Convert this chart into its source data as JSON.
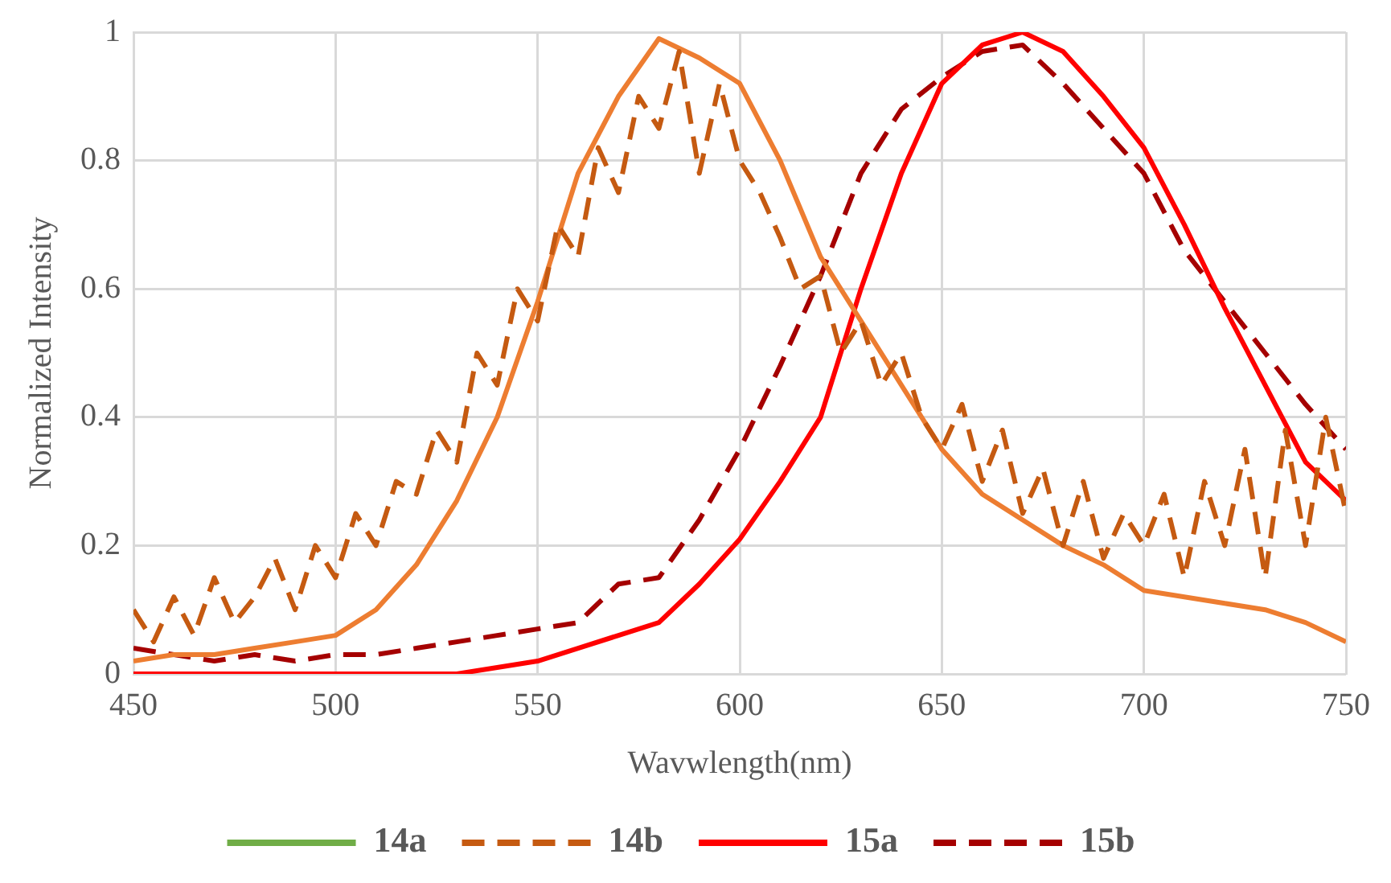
{
  "chart_data": {
    "type": "line",
    "xlabel": "Wavwlength(nm)",
    "ylabel": "Normalized Intensity",
    "xlim": [
      450,
      750
    ],
    "xticks": [
      450,
      500,
      550,
      600,
      650,
      700,
      750
    ],
    "ylim": [
      0,
      1
    ],
    "yticks": [
      0,
      0.2,
      0.4,
      0.6,
      0.8,
      1
    ],
    "grid": true,
    "legend": "bottom",
    "marker": "none",
    "x": [
      450,
      460,
      470,
      480,
      490,
      500,
      510,
      520,
      530,
      540,
      550,
      560,
      570,
      580,
      590,
      600,
      610,
      620,
      630,
      640,
      650,
      660,
      670,
      680,
      690,
      700,
      710,
      720,
      730,
      740,
      750
    ],
    "series": [
      {
        "name": "14a",
        "color": "#70ad47",
        "line_style": "solid",
        "values": [
          null,
          null,
          null,
          null,
          null,
          null,
          null,
          null,
          null,
          null,
          null,
          null,
          null,
          null,
          null,
          null,
          null,
          null,
          null,
          null,
          null,
          null,
          null,
          null,
          null,
          null,
          null,
          null,
          null,
          null,
          null
        ]
      },
      {
        "name": "14b",
        "color": "#c55a11",
        "line_style": "dashed",
        "x": [
          450,
          455,
          460,
          465,
          470,
          475,
          480,
          485,
          490,
          495,
          500,
          505,
          510,
          515,
          520,
          525,
          530,
          535,
          540,
          545,
          550,
          555,
          560,
          565,
          570,
          575,
          580,
          585,
          590,
          595,
          600,
          605,
          610,
          615,
          620,
          625,
          630,
          635,
          640,
          645,
          650,
          655,
          660,
          665,
          670,
          675,
          680,
          685,
          690,
          695,
          700,
          705,
          710,
          715,
          720,
          725,
          730,
          735,
          740,
          745,
          750
        ],
        "values": [
          0.1,
          0.05,
          0.12,
          0.06,
          0.15,
          0.08,
          0.12,
          0.18,
          0.1,
          0.2,
          0.15,
          0.25,
          0.2,
          0.3,
          0.28,
          0.38,
          0.33,
          0.5,
          0.45,
          0.6,
          0.55,
          0.7,
          0.65,
          0.82,
          0.75,
          0.9,
          0.85,
          0.97,
          0.78,
          0.92,
          0.8,
          0.75,
          0.68,
          0.6,
          0.62,
          0.5,
          0.55,
          0.45,
          0.5,
          0.4,
          0.35,
          0.42,
          0.3,
          0.38,
          0.25,
          0.32,
          0.2,
          0.3,
          0.18,
          0.25,
          0.2,
          0.28,
          0.15,
          0.3,
          0.2,
          0.35,
          0.15,
          0.38,
          0.2,
          0.4,
          0.25
        ]
      },
      {
        "color": "#ed7d31",
        "line_style": "solid",
        "values": [
          0.02,
          0.03,
          0.03,
          0.04,
          0.05,
          0.06,
          0.1,
          0.17,
          0.27,
          0.4,
          0.58,
          0.78,
          0.9,
          0.99,
          0.96,
          0.92,
          0.8,
          0.65,
          0.55,
          0.45,
          0.35,
          0.28,
          0.24,
          0.2,
          0.17,
          0.13,
          0.12,
          0.11,
          0.1,
          0.08,
          0.05
        ]
      },
      {
        "name": "15a",
        "color": "#ff0000",
        "line_style": "solid",
        "values": [
          0,
          0,
          0,
          0,
          0,
          0,
          0,
          0,
          0,
          0.01,
          0.02,
          0.04,
          0.06,
          0.08,
          0.14,
          0.21,
          0.3,
          0.4,
          0.6,
          0.78,
          0.92,
          0.98,
          1,
          0.97,
          0.9,
          0.82,
          0.7,
          0.57,
          0.45,
          0.33,
          0.27
        ]
      },
      {
        "name": "15b",
        "color": "#a50000",
        "line_style": "dashed",
        "values": [
          0.04,
          0.03,
          0.02,
          0.03,
          0.02,
          0.03,
          0.03,
          0.04,
          0.05,
          0.06,
          0.07,
          0.08,
          0.14,
          0.15,
          0.24,
          0.35,
          0.48,
          0.62,
          0.78,
          0.88,
          0.93,
          0.97,
          0.98,
          0.92,
          0.85,
          0.78,
          0.66,
          0.58,
          0.5,
          0.42,
          0.35
        ]
      }
    ]
  }
}
